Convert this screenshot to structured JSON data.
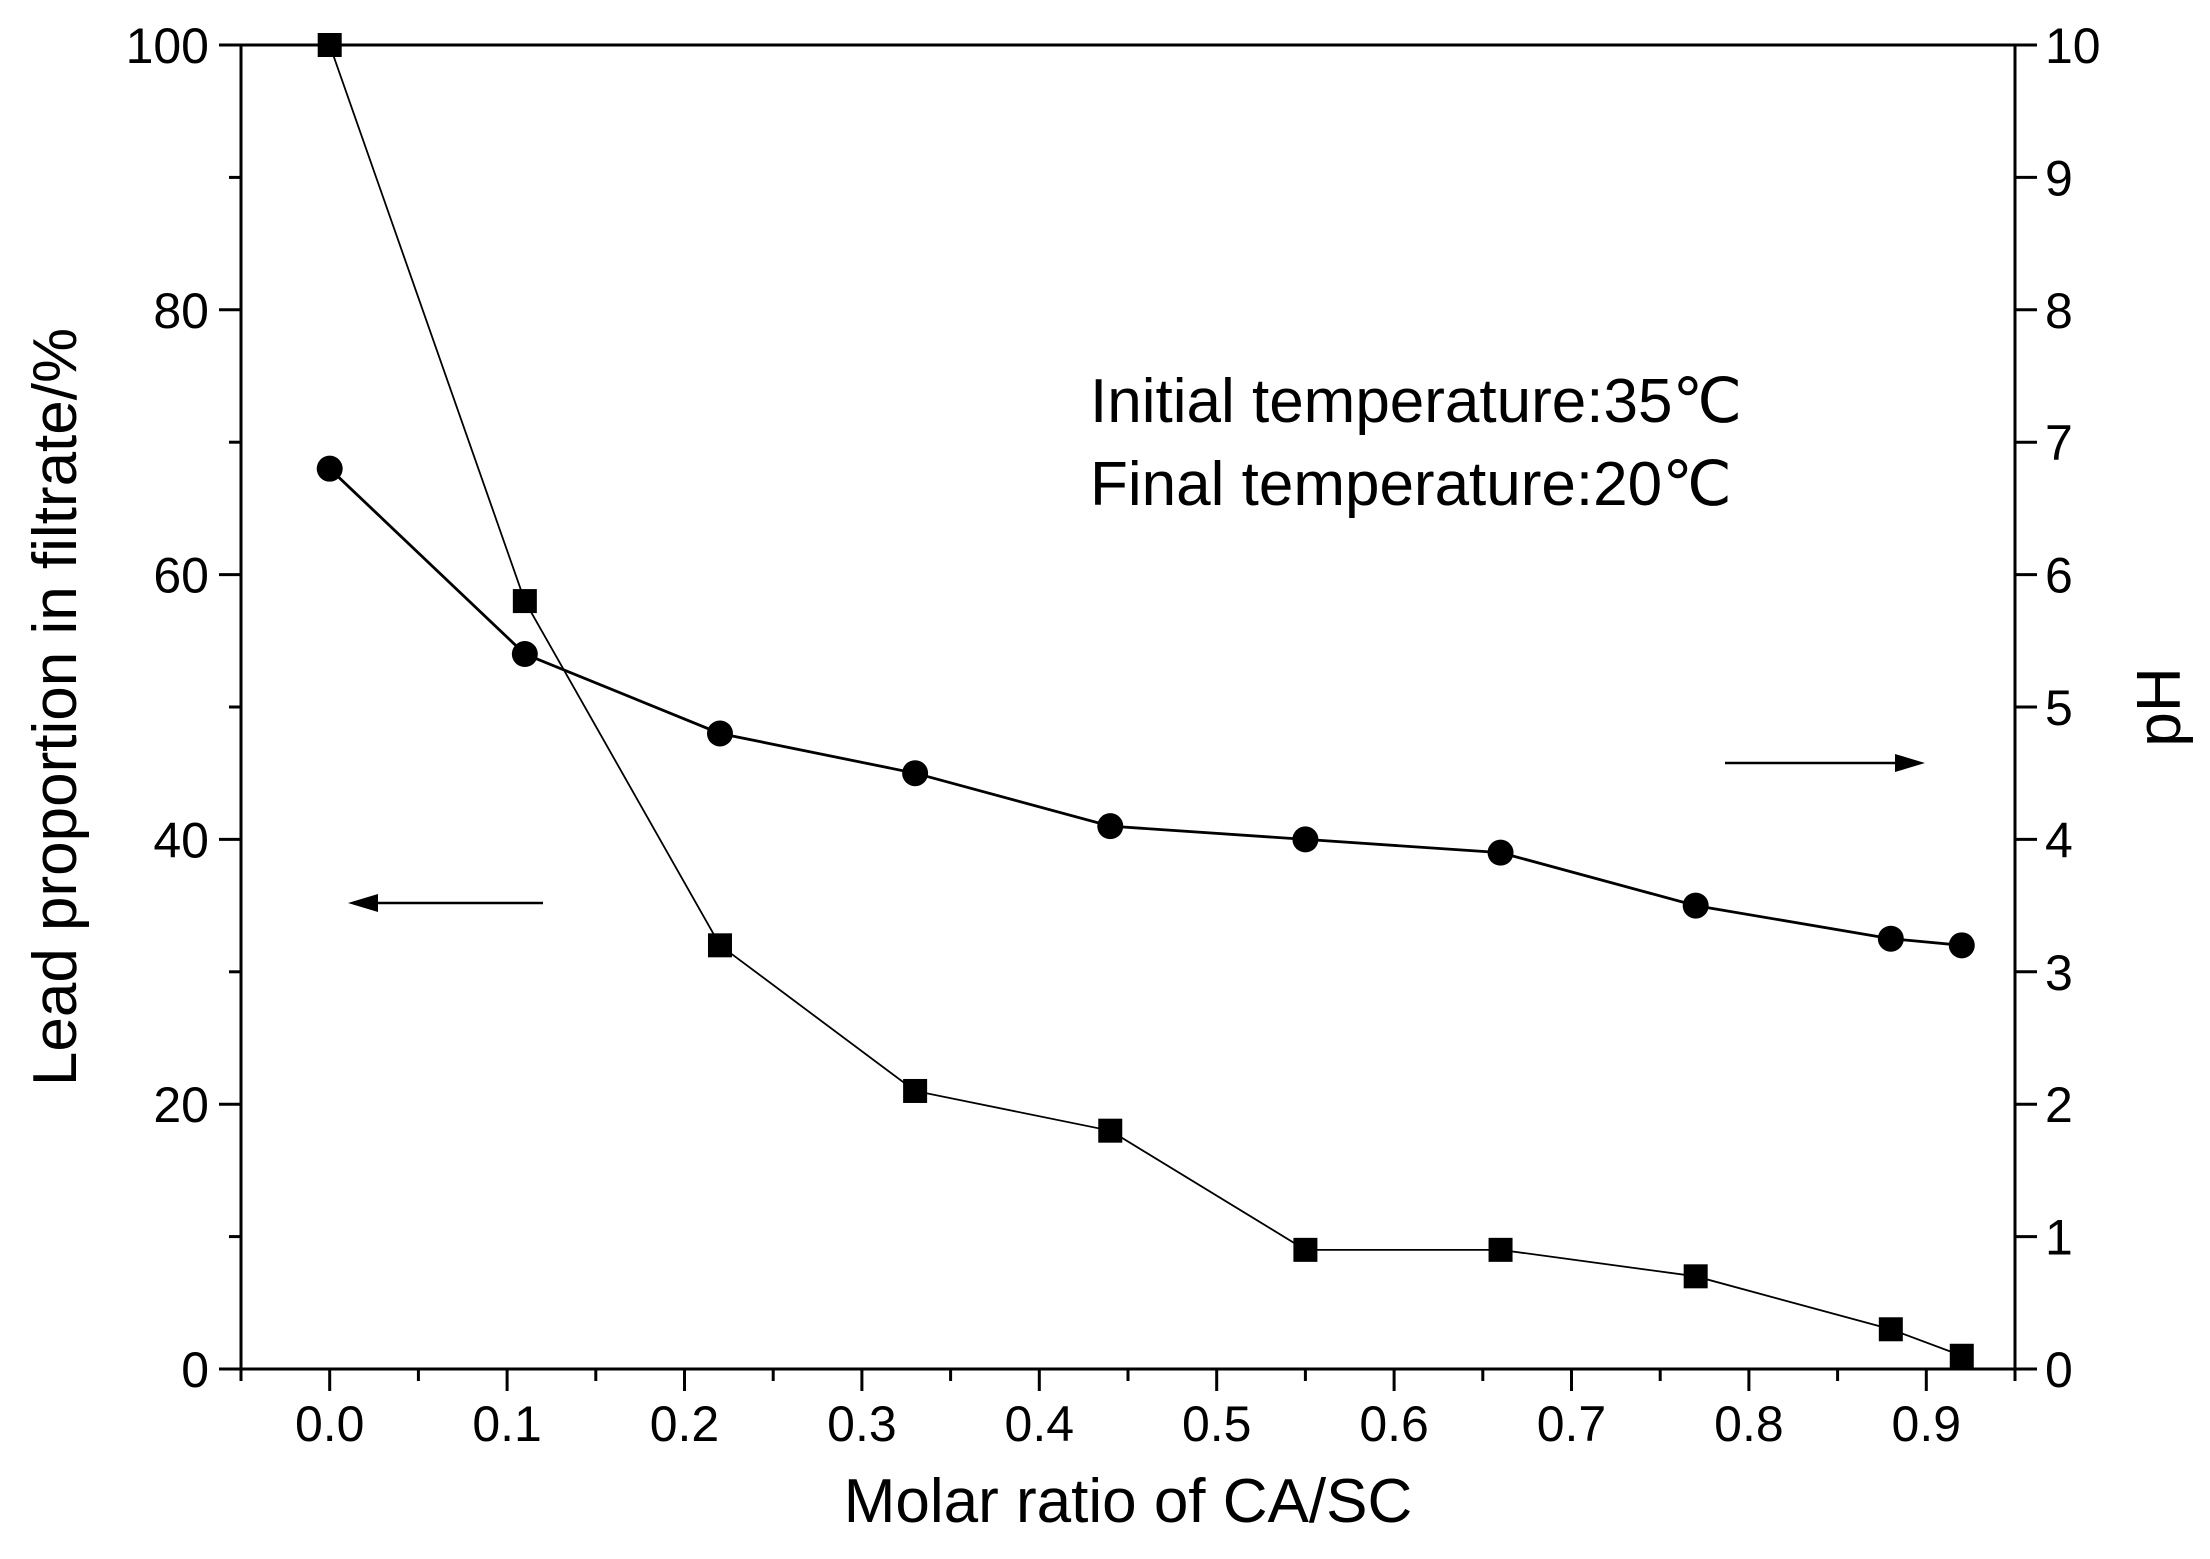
{
  "chart_data": {
    "type": "line",
    "x": [
      0.0,
      0.11,
      0.22,
      0.33,
      0.44,
      0.55,
      0.66,
      0.77,
      0.88,
      0.92
    ],
    "series": [
      {
        "name": "Lead proportion in filtrate",
        "axis": "left",
        "marker": "square",
        "values": [
          100,
          58,
          32,
          21,
          18,
          9,
          9,
          7,
          3,
          1
        ]
      },
      {
        "name": "pH",
        "axis": "right",
        "marker": "circle",
        "values": [
          6.8,
          5.4,
          4.8,
          4.5,
          4.1,
          4.0,
          3.9,
          3.5,
          3.25,
          3.2
        ]
      }
    ],
    "xlabel": "Molar ratio of CA/SC",
    "ylabel_left": "Lead  proportion in filtrate/%",
    "ylabel_right": "pH",
    "xlim": [
      -0.05,
      0.95
    ],
    "ylim_left": [
      0,
      100
    ],
    "ylim_right": [
      0,
      10
    ],
    "x_ticks": [
      "0.0",
      "0.1",
      "0.2",
      "0.3",
      "0.4",
      "0.5",
      "0.6",
      "0.7",
      "0.8",
      "0.9"
    ],
    "y_ticks_left": [
      "0",
      "20",
      "40",
      "60",
      "80",
      "100"
    ],
    "y_ticks_right": [
      "0",
      "1",
      "2",
      "3",
      "4",
      "5",
      "6",
      "7",
      "8",
      "9",
      "10"
    ],
    "annotations": [
      "Initial temperature:35℃",
      "Final temperature:20℃"
    ],
    "grid": false
  }
}
